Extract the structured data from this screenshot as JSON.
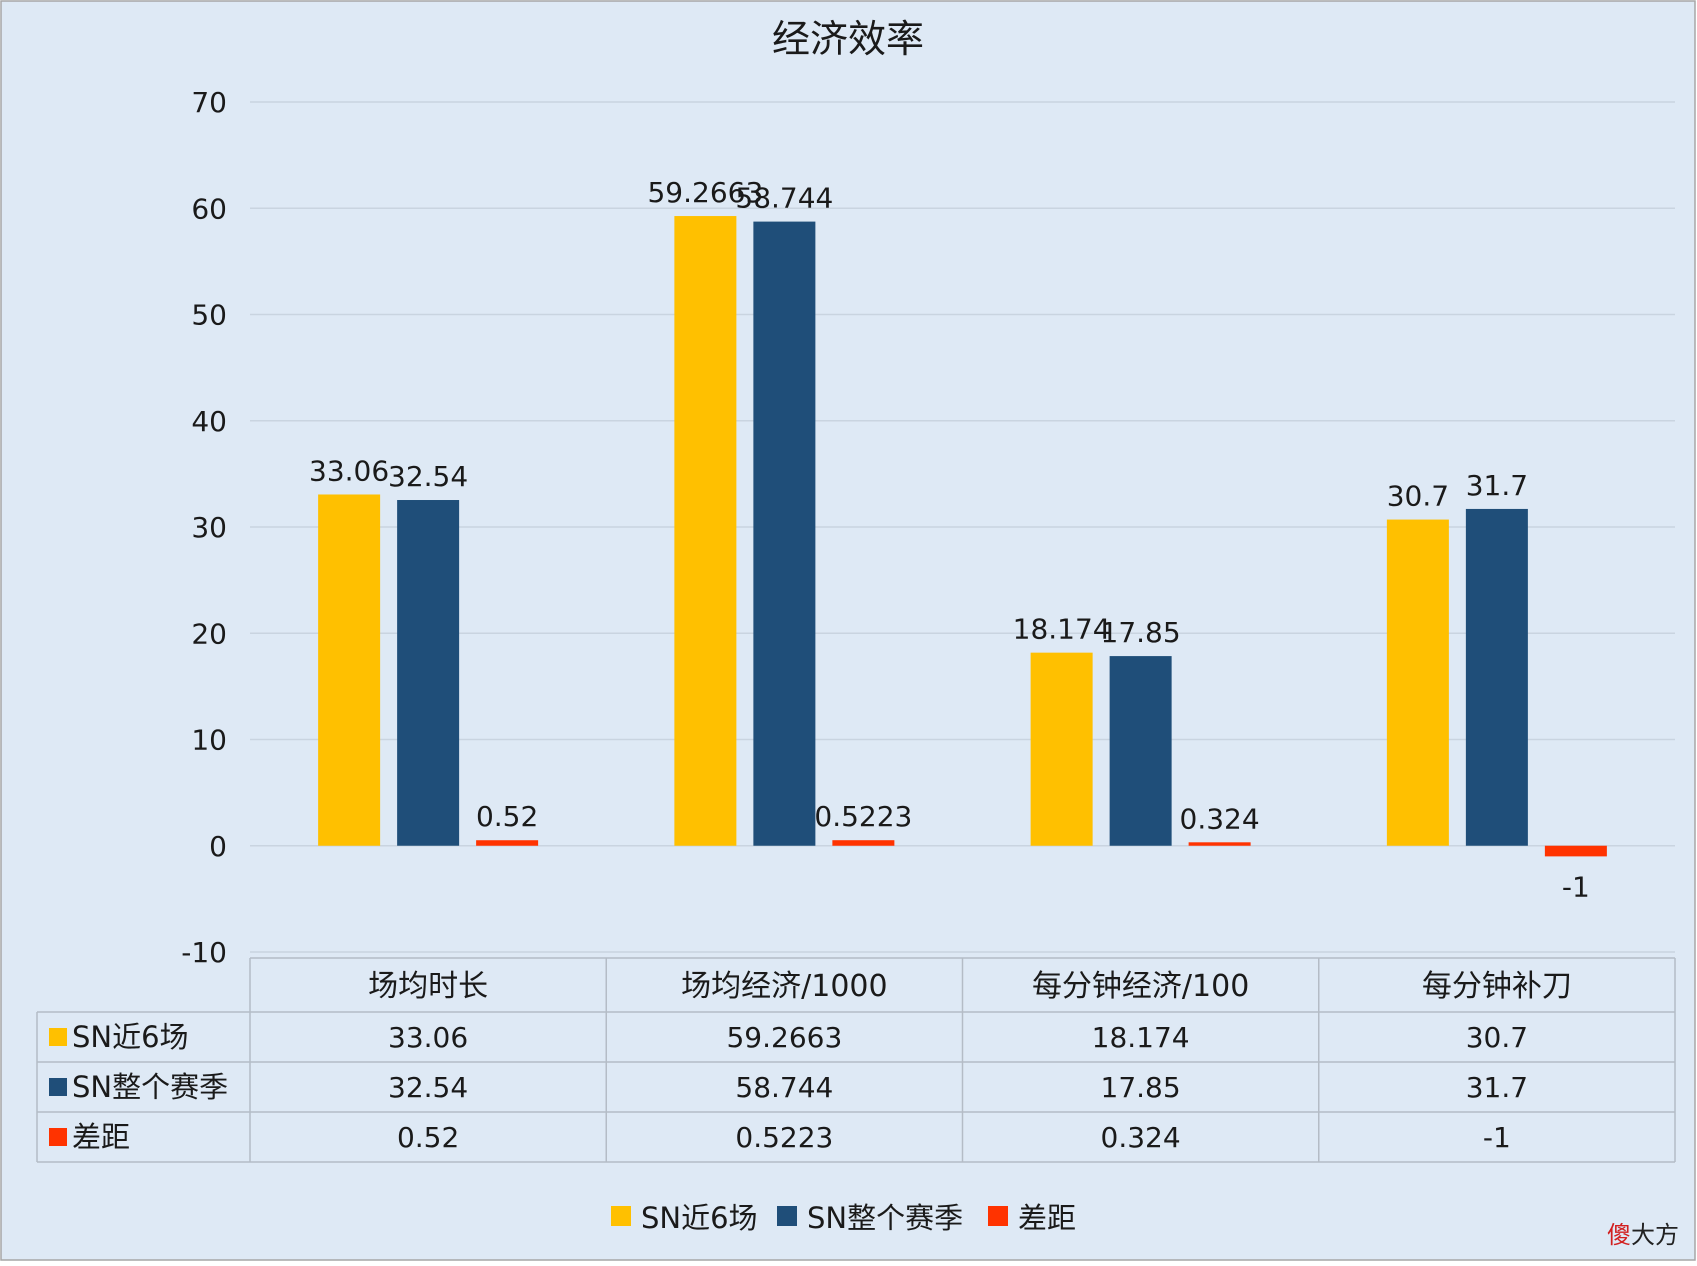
{
  "colors": {
    "background": "#dee9f5",
    "grid": "#c9d4e0",
    "text": "#1a1a1a",
    "series": [
      "#ffc000",
      "#1f4e79",
      "#ff3300"
    ]
  },
  "watermark": {
    "red_char": "傻",
    "rest": "大方"
  },
  "chart_data": {
    "type": "bar",
    "title": "经济效率",
    "categories": [
      "场均时长",
      "场均经济/1000",
      "每分钟经济/100",
      "每分钟补刀"
    ],
    "series": [
      {
        "name": "SN近6场",
        "values": [
          33.06,
          59.2663,
          18.174,
          30.7
        ],
        "labels": [
          "33.06",
          "59.2663",
          "18.174",
          "30.7"
        ]
      },
      {
        "name": "SN整个赛季",
        "values": [
          32.54,
          58.744,
          17.85,
          31.7
        ],
        "labels": [
          "32.54",
          "58.744",
          "17.85",
          "31.7"
        ]
      },
      {
        "name": "差距",
        "values": [
          0.52,
          0.5223,
          0.324,
          -1
        ],
        "labels": [
          "0.52",
          "0.5223",
          "0.324",
          "-1"
        ]
      }
    ],
    "ylim": [
      -10,
      70
    ],
    "yticks": [
      -10,
      0,
      10,
      20,
      30,
      40,
      50,
      60,
      70
    ],
    "grid": true,
    "data_table": true,
    "legend": "bottom"
  }
}
